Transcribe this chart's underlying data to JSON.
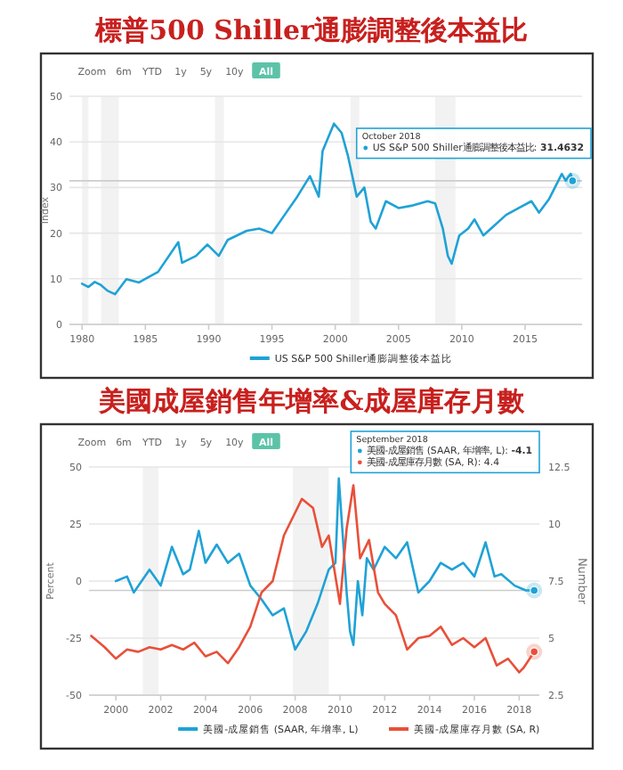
{
  "chart_data": [
    {
      "type": "line",
      "title": "標普500 Shiller通膨調整後本益比",
      "ylabel": "Index",
      "xlim": [
        1979,
        2019.5
      ],
      "ylim": [
        0,
        50
      ],
      "xticks": [
        1980,
        1985,
        1990,
        1995,
        2000,
        2005,
        2010,
        2015
      ],
      "yticks": [
        0,
        10,
        20,
        30,
        40,
        50
      ],
      "grid": "y",
      "legend": "bottom",
      "series": [
        {
          "name": "US S&P 500 Shiller通膨調整後本益比",
          "color": "#1fa2d6",
          "x": [
            1980,
            1980.5,
            1981,
            1981.5,
            1982,
            1982.6,
            1983.5,
            1984.5,
            1985,
            1986,
            1987.6,
            1987.9,
            1989,
            1989.9,
            1990.8,
            1991.5,
            1993,
            1994,
            1995,
            1996,
            1997,
            1998,
            1998.7,
            1999,
            1999.9,
            2000.5,
            2001,
            2001.7,
            2002.3,
            2002.8,
            2003.2,
            2004,
            2005,
            2006,
            2007.3,
            2007.9,
            2008.5,
            2008.9,
            2009.2,
            2009.8,
            2010.5,
            2011,
            2011.7,
            2012.5,
            2013.5,
            2014.5,
            2015.5,
            2016.1,
            2016.9,
            2017.9,
            2018.2,
            2018.6,
            2018.75
          ],
          "values": [
            8.9,
            8.2,
            9.3,
            8.6,
            7.4,
            6.6,
            9.9,
            9.2,
            10,
            11.5,
            18,
            13.5,
            15,
            17.5,
            15,
            18.5,
            20.5,
            21,
            20,
            24,
            28,
            32.5,
            28,
            38,
            44,
            42,
            37,
            28,
            30,
            22.5,
            21,
            27,
            25.5,
            26,
            27,
            26.5,
            21,
            15,
            13.3,
            19.5,
            21,
            23,
            19.5,
            21.5,
            24,
            25.5,
            27,
            24.5,
            27.5,
            33,
            31.5,
            33,
            31.4632
          ]
        }
      ],
      "bands": [
        {
          "axis": "x",
          "from": 1980,
          "to": 1980.5,
          "color": "#f2f2f2"
        },
        {
          "axis": "x",
          "from": 1981.5,
          "to": 1982.9,
          "color": "#f2f2f2"
        },
        {
          "axis": "x",
          "from": 1990.5,
          "to": 1991.2,
          "color": "#f2f2f2"
        },
        {
          "axis": "x",
          "from": 2001.2,
          "to": 2001.9,
          "color": "#f2f2f2"
        },
        {
          "axis": "x",
          "from": 2007.9,
          "to": 2009.5,
          "color": "#f2f2f2"
        }
      ],
      "ref_lines": [
        {
          "axis": "y",
          "value": 31.4632,
          "color": "#cccccc"
        }
      ],
      "annotations": [
        "Zoom 6m YTD 1y 5y 10y All",
        "October 2018",
        "US S&P 500 Shiller通膨調整後本益比: **31.4632**"
      ]
    },
    {
      "type": "line",
      "title": "美國成屋銷售年增率&成屋庫存月數",
      "ylabel": "Percent",
      "y2label": "Number",
      "xlim": [
        1998.8,
        2018.9
      ],
      "ylim": [
        -50,
        50
      ],
      "y2lim": [
        2.5,
        12.5
      ],
      "xticks": [
        2000,
        2002,
        2004,
        2006,
        2008,
        2010,
        2012,
        2014,
        2016,
        2018
      ],
      "yticks": [
        -50,
        -25,
        0,
        25,
        50
      ],
      "y2ticks": [
        2.5,
        5,
        7.5,
        10,
        12.5
      ],
      "grid": "y",
      "legend": "bottom",
      "series": [
        {
          "name": "美國-成屋銷售 (SAAR, 年增率, L)",
          "color": "#1fa2d6",
          "x": [
            2000,
            2000.5,
            2000.8,
            2001.5,
            2002,
            2002.5,
            2003,
            2003.3,
            2003.7,
            2004,
            2004.5,
            2005,
            2005.5,
            2006,
            2006.5,
            2007,
            2007.5,
            2008,
            2008.5,
            2009,
            2009.5,
            2009.8,
            2009.95,
            2010.3,
            2010.45,
            2010.6,
            2010.8,
            2011,
            2011.2,
            2011.5,
            2012,
            2012.5,
            2013,
            2013.5,
            2014,
            2014.5,
            2015,
            2015.5,
            2016,
            2016.5,
            2016.9,
            2017.2,
            2017.8,
            2018.3,
            2018.67
          ],
          "values": [
            0,
            2,
            -5,
            5,
            -2,
            15,
            3,
            5,
            22,
            8,
            16,
            8,
            12,
            -2,
            -8,
            -15,
            -12,
            -30,
            -22,
            -10,
            5,
            8,
            45,
            -5,
            -22,
            -28,
            0,
            -15,
            10,
            5,
            15,
            10,
            17,
            -5,
            0,
            8,
            5,
            8,
            2,
            17,
            2,
            3,
            -2,
            -4.1,
            -4.1
          ]
        },
        {
          "name": "美國-成屋庫存月數 (SA, R)",
          "color": "#e8503a",
          "axis": "y2",
          "x": [
            1998.9,
            1999.5,
            2000,
            2000.5,
            2001,
            2001.5,
            2002,
            2002.5,
            2003,
            2003.5,
            2004,
            2004.5,
            2005,
            2005.5,
            2006,
            2006.5,
            2007,
            2007.5,
            2008,
            2008.3,
            2008.8,
            2009.2,
            2009.5,
            2010,
            2010.3,
            2010.6,
            2010.9,
            2011.3,
            2011.7,
            2012,
            2012.5,
            2013,
            2013.5,
            2014,
            2014.5,
            2015,
            2015.5,
            2016,
            2016.5,
            2017,
            2017.5,
            2018,
            2018.2,
            2018.67
          ],
          "values": [
            5.1,
            4.6,
            4.1,
            4.5,
            4.4,
            4.6,
            4.5,
            4.7,
            4.5,
            4.8,
            4.2,
            4.4,
            3.9,
            4.6,
            5.5,
            7,
            7.5,
            9.5,
            10.5,
            11.1,
            10.7,
            9,
            9.5,
            6.5,
            9.8,
            11.7,
            8.5,
            9.3,
            7,
            6.5,
            6,
            4.5,
            5,
            5.1,
            5.5,
            4.7,
            5,
            4.6,
            5,
            3.8,
            4.1,
            3.5,
            3.7,
            4.4
          ]
        }
      ],
      "bands": [
        {
          "axis": "x",
          "from": 2001.2,
          "to": 2001.9,
          "color": "#f2f2f2"
        },
        {
          "axis": "x",
          "from": 2007.9,
          "to": 2009.5,
          "color": "#f2f2f2"
        }
      ],
      "ref_lines": [
        {
          "axis": "y",
          "value": -4.1,
          "color": "#cccccc"
        }
      ],
      "annotations": [
        "Zoom 6m YTD 1y 5y 10y All",
        "September 2018",
        "美國-成屋銷售 (SAAR, 年增率, L): **-4.1**",
        "美國-成屋庫存月數 (SA, R): 4.4"
      ]
    }
  ]
}
